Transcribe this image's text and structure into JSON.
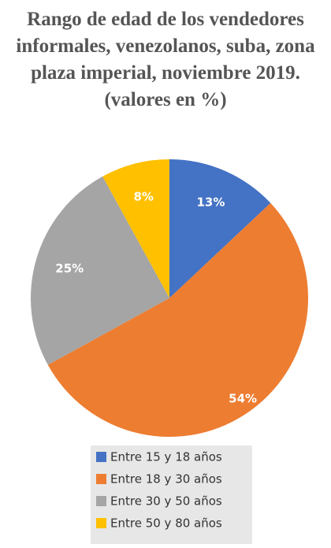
{
  "chart_data": {
    "type": "pie",
    "title": "Rango de edad de los vendedores informales, venezolanos, suba, zona plaza imperial, noviembre 2019.(valores en %)",
    "categories": [
      "Entre 15 y 18 años",
      "Entre 18 y 30 años",
      "Entre 30 y 50 años",
      "Entre 50 y 80 años"
    ],
    "values": [
      13,
      54,
      25,
      8
    ],
    "value_labels": [
      "13%",
      "54%",
      "25%",
      "8%"
    ],
    "colors": [
      "#4472c4",
      "#ed7d31",
      "#a5a5a5",
      "#ffc000"
    ],
    "legend": "bottom"
  }
}
